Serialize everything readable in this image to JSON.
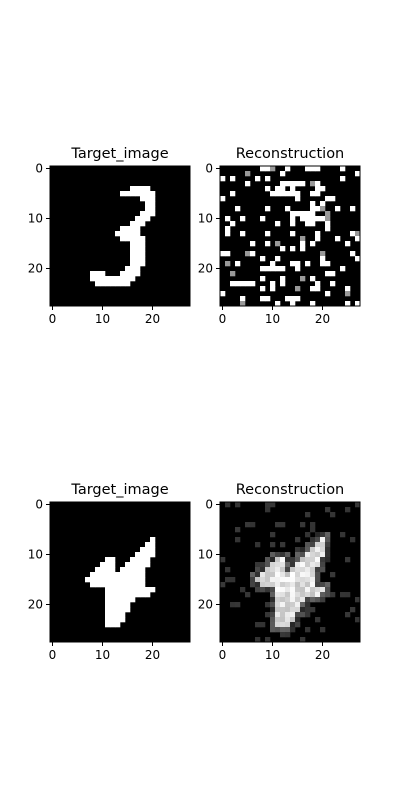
{
  "chart_data": [
    {
      "type": "heatmap",
      "title": "Target_image",
      "xlim": [
        0,
        28
      ],
      "ylim": [
        28,
        0
      ],
      "xticks": [
        "0",
        "10",
        "20"
      ],
      "yticks": [
        "0",
        "10",
        "20"
      ],
      "grid": false,
      "colormap": "gray",
      "content": "digit 3"
    },
    {
      "type": "heatmap",
      "title": "Reconstruction",
      "xlim": [
        0,
        28
      ],
      "ylim": [
        28,
        0
      ],
      "xticks": [
        "0",
        "10",
        "20"
      ],
      "yticks": [
        "0",
        "10",
        "20"
      ],
      "grid": false,
      "colormap": "gray",
      "content": "sparse random noise"
    },
    {
      "type": "heatmap",
      "title": "Target_image",
      "xlim": [
        0,
        28
      ],
      "ylim": [
        28,
        0
      ],
      "xticks": [
        "0",
        "10",
        "20"
      ],
      "yticks": [
        "0",
        "10",
        "20"
      ],
      "grid": false,
      "colormap": "gray",
      "content": "digit 4"
    },
    {
      "type": "heatmap",
      "title": "Reconstruction",
      "xlim": [
        0,
        28
      ],
      "ylim": [
        28,
        0
      ],
      "xticks": [
        "0",
        "10",
        "20"
      ],
      "yticks": [
        "0",
        "10",
        "20"
      ],
      "grid": false,
      "colormap": "gray",
      "content": "blurry digit 4"
    }
  ]
}
